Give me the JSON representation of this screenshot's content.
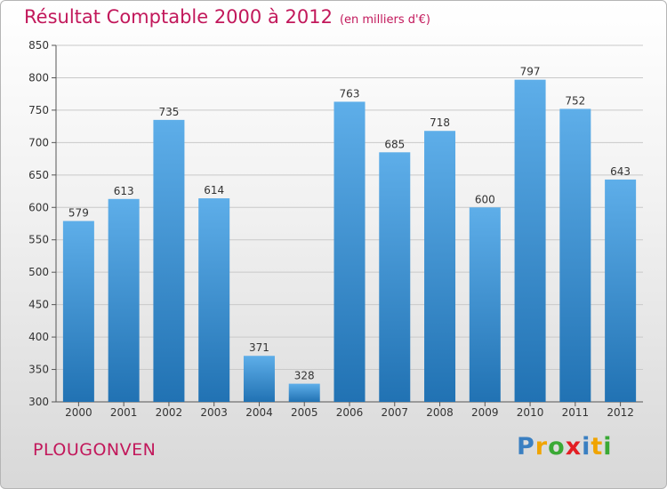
{
  "chart_data": {
    "type": "bar",
    "title": "Résultat Comptable 2000 à 2012",
    "subtitle": "(en milliers d'€)",
    "categories": [
      "2000",
      "2001",
      "2002",
      "2003",
      "2004",
      "2005",
      "2006",
      "2007",
      "2008",
      "2009",
      "2010",
      "2011",
      "2012"
    ],
    "values": [
      579,
      613,
      735,
      614,
      371,
      328,
      763,
      685,
      718,
      600,
      797,
      752,
      643
    ],
    "ylim": [
      300,
      850
    ],
    "yticks": [
      300,
      350,
      400,
      450,
      500,
      550,
      600,
      650,
      700,
      750,
      800,
      850
    ],
    "grid": true,
    "xlabel": "",
    "ylabel": ""
  },
  "location": "PLOUGONVEN",
  "logo": {
    "letters": [
      "P",
      "r",
      "o",
      "x",
      "i",
      "t",
      "i"
    ],
    "colors": [
      "#3a7fc1",
      "#f0a400",
      "#3aa935",
      "#e31e24",
      "#3a7fc1",
      "#f0a400",
      "#3aa935"
    ]
  },
  "colors": {
    "accent": "#c2185b",
    "bar_top": "#5dade8",
    "bar_bottom": "#2474b5",
    "grid": "#cccccc"
  }
}
